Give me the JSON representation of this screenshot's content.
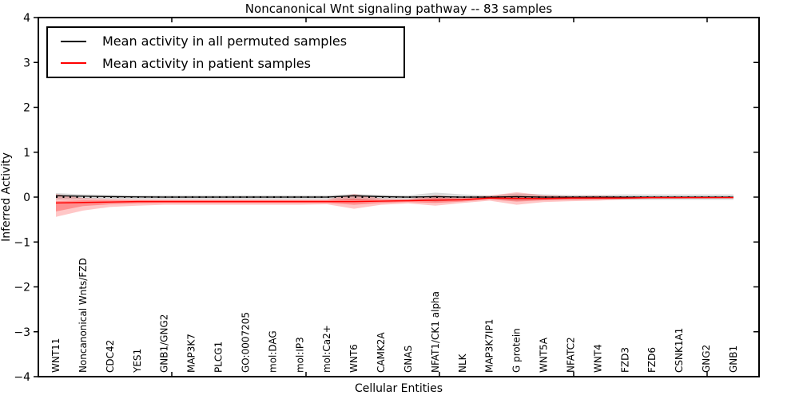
{
  "chart_data": {
    "type": "line",
    "title": "Noncanonical Wnt signaling pathway -- 83 samples",
    "xlabel": "Cellular Entities",
    "ylabel": "Inferred Activity",
    "ylim": [
      -4,
      4
    ],
    "yticks": [
      -4,
      -3,
      -2,
      -1,
      0,
      1,
      2,
      3,
      4
    ],
    "grid": false,
    "legend_position": "upper left",
    "zero_reference_line": 0,
    "categories": [
      "WNT11",
      "Noncanonical Wnts/FZD",
      "CDC42",
      "YES1",
      "GNB1/GNG2",
      "MAP3K7",
      "PLCG1",
      "GO:0007205",
      "mol:DAG",
      "mol:IP3",
      "mol:Ca2+",
      "WNT6",
      "CAMK2A",
      "GNAS",
      "NFAT1/CK1 alpha",
      "NLK",
      "MAP3K7IP1",
      "G protein",
      "WNT5A",
      "NFATC2",
      "WNT4",
      "FZD3",
      "FZD6",
      "CSNK1A1",
      "GNG2",
      "GNB1"
    ],
    "series": [
      {
        "name": "Mean activity in all permuted samples",
        "color": "#000000",
        "band_color": "rgba(0,0,0,0.15)",
        "values": [
          0.03,
          0.02,
          0.01,
          0.005,
          0,
          0,
          0,
          0,
          0,
          0,
          0,
          0.03,
          0.01,
          0,
          0.01,
          0,
          0,
          0.01,
          0,
          0,
          0,
          0,
          0,
          0,
          0,
          0
        ],
        "band_upper": [
          0.09,
          0.06,
          0.05,
          0.04,
          0.04,
          0.04,
          0.04,
          0.04,
          0.04,
          0.04,
          0.04,
          0.07,
          0.05,
          0.04,
          0.1,
          0.06,
          0.04,
          0.08,
          0.06,
          0.05,
          0.05,
          0.06,
          0.06,
          0.06,
          0.06,
          0.06
        ],
        "band_lower": [
          -0.05,
          -0.05,
          -0.05,
          -0.05,
          -0.05,
          -0.05,
          -0.05,
          -0.05,
          -0.05,
          -0.05,
          -0.05,
          -0.07,
          -0.05,
          -0.05,
          -0.1,
          -0.06,
          -0.04,
          -0.08,
          -0.06,
          -0.05,
          -0.05,
          -0.06,
          -0.06,
          -0.06,
          -0.06,
          -0.06
        ]
      },
      {
        "name": "Mean activity in patient samples",
        "color": "#ff0000",
        "band_color": "rgba(255,0,0,0.22)",
        "inner_band_color": "rgba(255,0,0,0.28)",
        "values": [
          -0.13,
          -0.12,
          -0.11,
          -0.1,
          -0.1,
          -0.1,
          -0.1,
          -0.1,
          -0.1,
          -0.1,
          -0.1,
          -0.1,
          -0.09,
          -0.08,
          -0.07,
          -0.06,
          -0.02,
          -0.03,
          -0.03,
          -0.02,
          -0.02,
          -0.02,
          -0.01,
          -0.01,
          -0.01,
          -0.01
        ],
        "band_upper": [
          0.07,
          -0.02,
          -0.04,
          -0.05,
          -0.05,
          -0.05,
          -0.05,
          -0.05,
          -0.05,
          -0.05,
          -0.05,
          0.07,
          -0.03,
          -0.04,
          0.04,
          0.0,
          0.03,
          0.11,
          0.04,
          0.02,
          0.03,
          0.01,
          0.01,
          0.01,
          0.0,
          0.01
        ],
        "band_lower": [
          -0.44,
          -0.3,
          -0.22,
          -0.19,
          -0.17,
          -0.17,
          -0.17,
          -0.17,
          -0.17,
          -0.17,
          -0.16,
          -0.26,
          -0.17,
          -0.14,
          -0.19,
          -0.13,
          -0.08,
          -0.17,
          -0.11,
          -0.09,
          -0.08,
          -0.05,
          -0.04,
          -0.03,
          -0.03,
          -0.02
        ],
        "inner_band_upper": [
          -0.09,
          -0.07,
          -0.07,
          -0.07,
          -0.07,
          -0.07,
          -0.07,
          -0.07,
          -0.07,
          -0.07,
          -0.07,
          -0.03,
          -0.06,
          -0.06,
          -0.02,
          -0.03,
          0.0,
          0.03,
          0.0,
          0.0,
          0.0,
          0.0,
          0.0,
          0.0,
          0.0,
          0.0
        ],
        "inner_band_lower": [
          -0.32,
          -0.2,
          -0.16,
          -0.14,
          -0.13,
          -0.13,
          -0.13,
          -0.13,
          -0.13,
          -0.13,
          -0.13,
          -0.17,
          -0.13,
          -0.11,
          -0.13,
          -0.1,
          -0.05,
          -0.1,
          -0.07,
          -0.06,
          -0.05,
          -0.04,
          -0.03,
          -0.03,
          -0.02,
          -0.02
        ]
      }
    ]
  },
  "legend": {
    "items": [
      {
        "label": "Mean activity in all permuted samples",
        "color": "#000000"
      },
      {
        "label": "Mean activity in patient samples",
        "color": "#ff0000"
      }
    ]
  },
  "colors": {
    "axis": "#000000",
    "background": "#ffffff",
    "permuted_line": "#000000",
    "patient_line": "#ff0000"
  }
}
